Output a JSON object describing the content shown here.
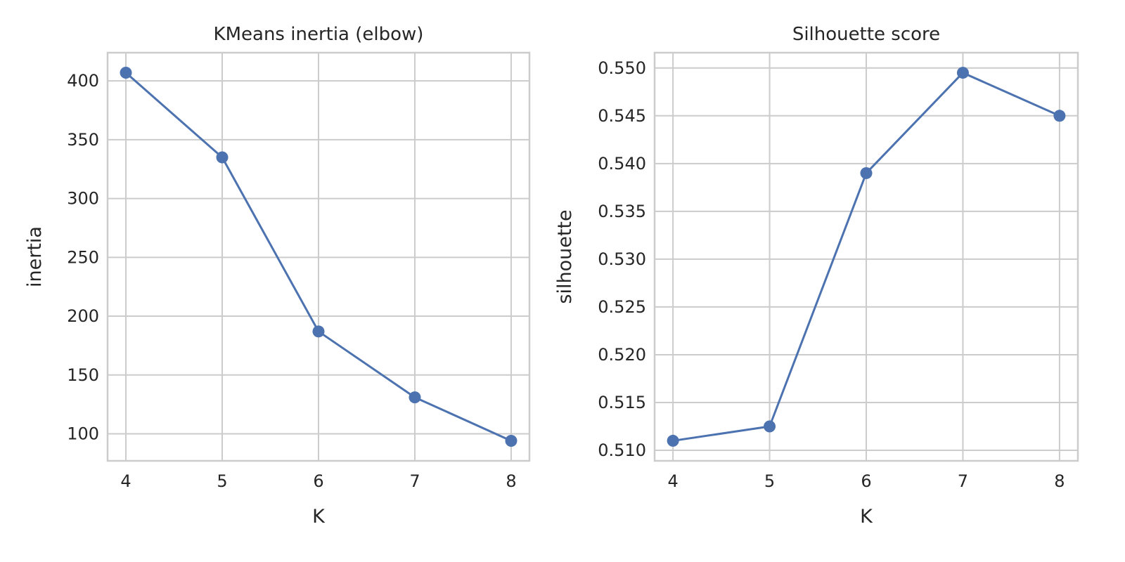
{
  "chart_data": [
    {
      "type": "line",
      "title": "KMeans inertia (elbow)",
      "xlabel": "K",
      "ylabel": "inertia",
      "x": [
        4,
        5,
        6,
        7,
        8
      ],
      "series": [
        {
          "values": [
            407,
            335,
            187,
            131,
            94
          ]
        }
      ],
      "xticks": [
        "4",
        "5",
        "6",
        "7",
        "8"
      ],
      "yticks": [
        "100",
        "150",
        "200",
        "250",
        "300",
        "350",
        "400"
      ],
      "xlim": [
        3.81,
        8.19
      ],
      "ylim": [
        77,
        424
      ],
      "grid": true,
      "marker": "circle",
      "color": "#4c72b0"
    },
    {
      "type": "line",
      "title": "Silhouette score",
      "xlabel": "K",
      "ylabel": "silhouette",
      "x": [
        4,
        5,
        6,
        7,
        8
      ],
      "series": [
        {
          "values": [
            0.511,
            0.5125,
            0.539,
            0.5495,
            0.545
          ]
        }
      ],
      "xticks": [
        "4",
        "5",
        "6",
        "7",
        "8"
      ],
      "yticks": [
        "0.510",
        "0.515",
        "0.520",
        "0.525",
        "0.530",
        "0.535",
        "0.540",
        "0.545",
        "0.550"
      ],
      "xlim": [
        3.81,
        8.19
      ],
      "ylim": [
        0.5089,
        0.5516
      ],
      "grid": true,
      "marker": "circle",
      "color": "#4c72b0"
    }
  ]
}
